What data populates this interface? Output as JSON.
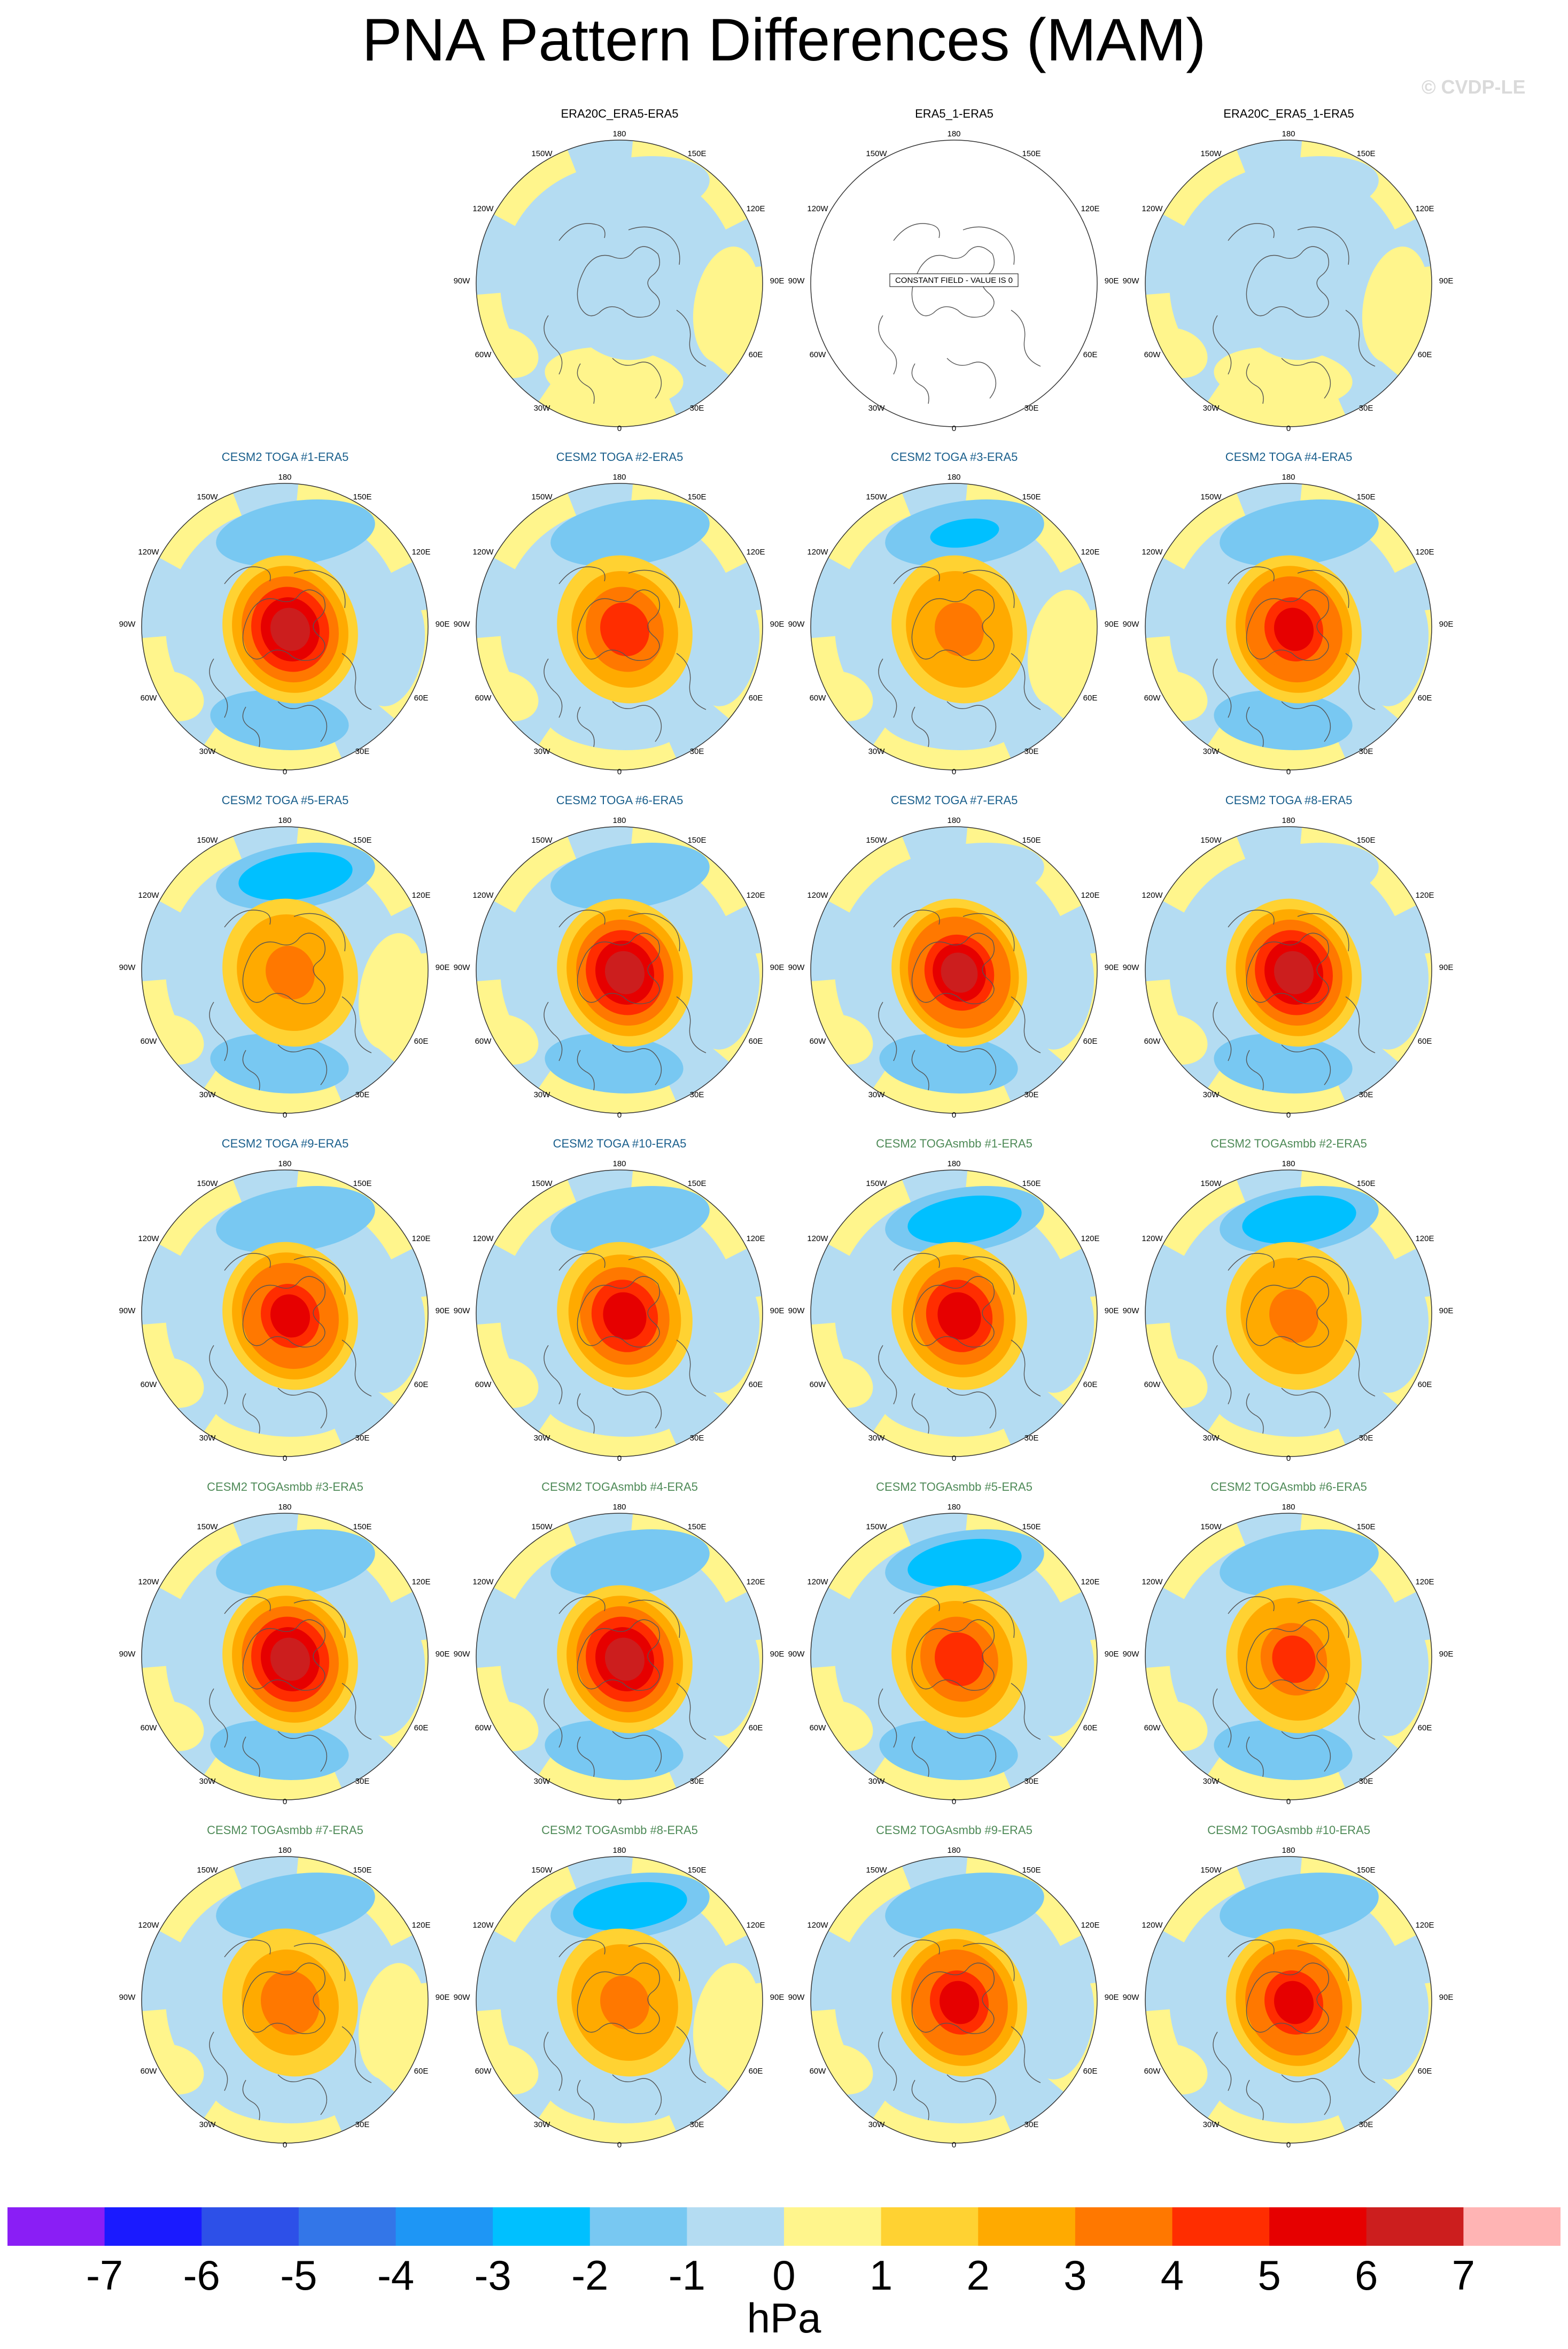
{
  "title": "PNA Pattern Differences (MAM)",
  "watermark": "© CVDP-LE",
  "chart_data": {
    "type": "heatmap",
    "projection": "north-polar-stereographic",
    "field": "PNA pattern difference (sea-level pressure)",
    "units": "hPa",
    "longitude_labels": [
      "180",
      "150E",
      "120E",
      "90E",
      "60E",
      "30E",
      "0",
      "30W",
      "60W",
      "90W",
      "120W",
      "150W"
    ],
    "colorbar": {
      "levels": [
        -7,
        -6,
        -5,
        -4,
        -3,
        -2,
        -1,
        0,
        1,
        2,
        3,
        4,
        5,
        6,
        7
      ],
      "colors": [
        "#8a1ef5",
        "#1a1aff",
        "#2d50e8",
        "#3376e8",
        "#1e96f5",
        "#00c0ff",
        "#78c8f2",
        "#b4dcf2",
        "#fff58c",
        "#ffd232",
        "#ffaa00",
        "#ff7800",
        "#ff2d00",
        "#e60000",
        "#cc1e1e",
        "#ffb4b4"
      ],
      "tick_labels": [
        "-7",
        "-6",
        "-5",
        "-4",
        "-3",
        "-2",
        "-1",
        "0",
        "1",
        "2",
        "3",
        "4",
        "5",
        "6",
        "7"
      ]
    },
    "panels": [
      {
        "title": "ERA20C_ERA5-ERA5",
        "group": "obs",
        "north_pacific": -0.5,
        "canada": -0.5,
        "atlantic": 0.5,
        "europe": 0.5
      },
      {
        "title": "ERA5_1-ERA5",
        "group": "obs",
        "constant": true,
        "constant_label": "CONSTANT FIELD - VALUE IS 0"
      },
      {
        "title": "ERA20C_ERA5_1-ERA5",
        "group": "obs",
        "north_pacific": -0.5,
        "canada": -0.5,
        "atlantic": 0.5,
        "europe": 0.5
      },
      {
        "title": "CESM2 TOGA #1-ERA5",
        "group": "toga",
        "north_pacific": -1.5,
        "canada": 6.0,
        "atlantic": -1.5,
        "europe": -1.0
      },
      {
        "title": "CESM2 TOGA #2-ERA5",
        "group": "toga",
        "north_pacific": -1.5,
        "canada": 4.0,
        "atlantic": -1.0,
        "europe": -0.5
      },
      {
        "title": "CESM2 TOGA #3-ERA5",
        "group": "toga",
        "north_pacific": -2.5,
        "canada": 3.5,
        "atlantic": -1.0,
        "europe": 0.5
      },
      {
        "title": "CESM2 TOGA #4-ERA5",
        "group": "toga",
        "north_pacific": -2.0,
        "canada": 5.5,
        "atlantic": -1.5,
        "europe": -0.5
      },
      {
        "title": "CESM2 TOGA #5-ERA5",
        "group": "toga",
        "north_pacific": -3.0,
        "canada": 3.5,
        "atlantic": -1.5,
        "europe": 0.5
      },
      {
        "title": "CESM2 TOGA #6-ERA5",
        "group": "toga",
        "north_pacific": -2.0,
        "canada": 6.0,
        "atlantic": -1.5,
        "europe": -1.0
      },
      {
        "title": "CESM2 TOGA #7-ERA5",
        "group": "toga",
        "north_pacific": -1.0,
        "canada": 6.5,
        "atlantic": -2.0,
        "europe": -0.5
      },
      {
        "title": "CESM2 TOGA #8-ERA5",
        "group": "toga",
        "north_pacific": -1.0,
        "canada": 6.0,
        "atlantic": -2.0,
        "europe": -1.0
      },
      {
        "title": "CESM2 TOGA #9-ERA5",
        "group": "toga",
        "north_pacific": -2.0,
        "canada": 5.5,
        "atlantic": -1.0,
        "europe": -0.5
      },
      {
        "title": "CESM2 TOGA #10-ERA5",
        "group": "toga",
        "north_pacific": -2.0,
        "canada": 5.0,
        "atlantic": -1.0,
        "europe": -0.5
      },
      {
        "title": "CESM2 TOGAsmbb #1-ERA5",
        "group": "smbb",
        "north_pacific": -3.0,
        "canada": 5.0,
        "atlantic": -1.0,
        "europe": -0.5
      },
      {
        "title": "CESM2 TOGAsmbb #2-ERA5",
        "group": "smbb",
        "north_pacific": -3.0,
        "canada": 3.5,
        "atlantic": -1.0,
        "europe": -0.5
      },
      {
        "title": "CESM2 TOGAsmbb #3-ERA5",
        "group": "smbb",
        "north_pacific": -2.0,
        "canada": 6.0,
        "atlantic": -1.5,
        "europe": -0.5
      },
      {
        "title": "CESM2 TOGAsmbb #4-ERA5",
        "group": "smbb",
        "north_pacific": -2.0,
        "canada": 6.0,
        "atlantic": -2.0,
        "europe": -0.5
      },
      {
        "title": "CESM2 TOGAsmbb #5-ERA5",
        "group": "smbb",
        "north_pacific": -3.0,
        "canada": 4.0,
        "atlantic": -1.5,
        "europe": -0.5
      },
      {
        "title": "CESM2 TOGAsmbb #6-ERA5",
        "group": "smbb",
        "north_pacific": -2.0,
        "canada": 4.5,
        "atlantic": -1.5,
        "europe": -0.5
      },
      {
        "title": "CESM2 TOGAsmbb #7-ERA5",
        "group": "smbb",
        "north_pacific": -2.0,
        "canada": 3.0,
        "atlantic": -1.0,
        "europe": 0.5
      },
      {
        "title": "CESM2 TOGAsmbb #8-ERA5",
        "group": "smbb",
        "north_pacific": -3.0,
        "canada": 3.5,
        "atlantic": -1.0,
        "europe": 0.5
      },
      {
        "title": "CESM2 TOGAsmbb #9-ERA5",
        "group": "smbb",
        "north_pacific": -2.0,
        "canada": 5.5,
        "atlantic": -1.0,
        "europe": -0.5
      },
      {
        "title": "CESM2 TOGAsmbb #10-ERA5",
        "group": "smbb",
        "north_pacific": -2.0,
        "canada": 5.5,
        "atlantic": -1.0,
        "europe": -0.5
      }
    ]
  }
}
